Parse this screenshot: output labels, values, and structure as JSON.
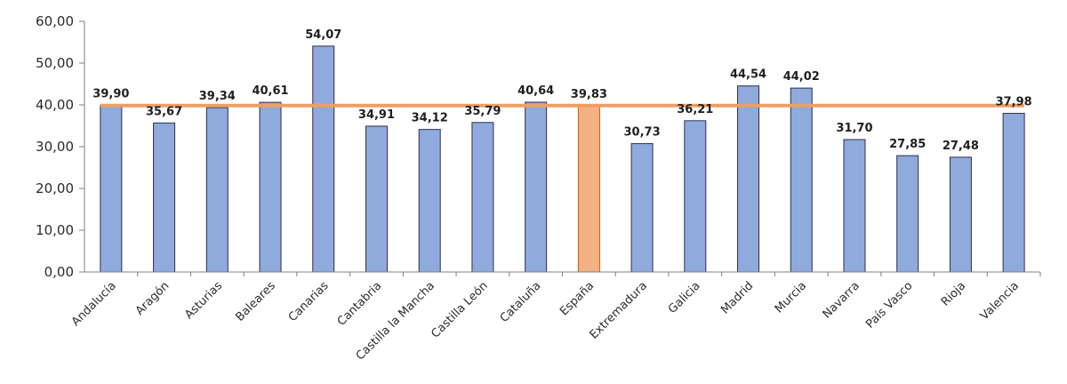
{
  "chart_data": {
    "type": "bar",
    "title": "",
    "xlabel": "",
    "ylabel": "",
    "ylim": [
      0,
      60
    ],
    "yticks": [
      "0,00",
      "10,00",
      "20,00",
      "30,00",
      "40,00",
      "50,00",
      "60,00"
    ],
    "grid": false,
    "legend": "none",
    "categories": [
      "Andalucía",
      "Aragón",
      "Asturias",
      "Baleares",
      "Canarias",
      "Cantabria",
      "Castilla la Mancha",
      "Castilla León",
      "Cataluña",
      "España",
      "Extremadura",
      "Galicia",
      "Madrid",
      "Murcia",
      "Navarra",
      "País Vasco",
      "Rioja",
      "Valencia"
    ],
    "values": [
      39.9,
      35.67,
      39.34,
      40.61,
      54.07,
      34.91,
      34.12,
      35.79,
      40.64,
      39.83,
      30.73,
      36.21,
      44.54,
      44.02,
      31.7,
      27.85,
      27.48,
      37.98
    ],
    "value_labels": [
      "39,90",
      "35,67",
      "39,34",
      "40,61",
      "54,07",
      "34,91",
      "34,12",
      "35,79",
      "40,64",
      "39,83",
      "30,73",
      "36,21",
      "44,54",
      "44,02",
      "31,70",
      "27,85",
      "27,48",
      "37,98"
    ],
    "highlight_category": "España",
    "reference_line": {
      "value": 39.83
    },
    "colors": {
      "bar": "#8faadc",
      "bar_stroke": "#2f2f4f",
      "highlight_bar": "#f4b183",
      "highlight_stroke": "#c55a11",
      "reference_line": "#ed9f63",
      "axis": "#7f7f7f"
    }
  }
}
